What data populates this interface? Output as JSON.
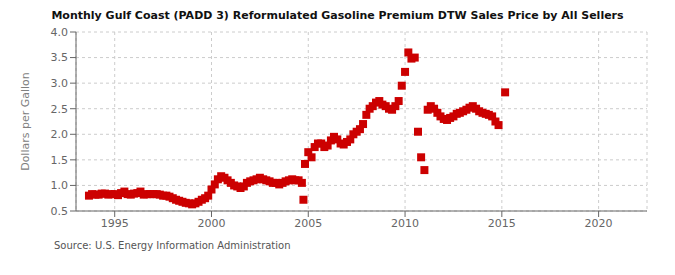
{
  "chart_data": {
    "type": "scatter",
    "title": "Monthly Gulf Coast (PADD 3) Reformulated Gasoline Premium DTW Sales Price by All Sellers",
    "ylabel": "Dollars per Gallon",
    "annotation": "Source: U.S. Energy Information Administration",
    "color": "#cc0000",
    "marker": "square",
    "grid": true,
    "xlim": [
      1993.0,
      2022.5
    ],
    "xticks": [
      1995,
      2000,
      2005,
      2010,
      2015,
      2020
    ],
    "ylim": [
      0.5,
      4.0
    ],
    "yticks": [
      0.5,
      {
        "value": 1.0,
        "label": "1.0"
      },
      1.5,
      {
        "value": 2.0,
        "label": "2.0"
      },
      2.5,
      {
        "value": 3.0,
        "label": "3.0"
      },
      3.5,
      {
        "value": 4.0,
        "label": "4.0"
      }
    ],
    "x": [
      1993.67,
      1993.83,
      1994.0,
      1994.17,
      1994.33,
      1994.5,
      1994.67,
      1994.83,
      1995.0,
      1995.17,
      1995.33,
      1995.5,
      1995.67,
      1995.83,
      1996.0,
      1996.17,
      1996.33,
      1996.5,
      1996.67,
      1996.83,
      1997.0,
      1997.17,
      1997.33,
      1997.5,
      1997.67,
      1997.83,
      1998.0,
      1998.17,
      1998.33,
      1998.5,
      1998.67,
      1998.83,
      1999.0,
      1999.17,
      1999.33,
      1999.5,
      1999.67,
      1999.83,
      2000.0,
      2000.17,
      2000.33,
      2000.5,
      2000.67,
      2000.83,
      2001.0,
      2001.17,
      2001.33,
      2001.5,
      2001.67,
      2001.83,
      2002.0,
      2002.17,
      2002.33,
      2002.5,
      2002.67,
      2002.83,
      2003.0,
      2003.17,
      2003.33,
      2003.5,
      2003.67,
      2003.83,
      2004.0,
      2004.17,
      2004.33,
      2004.5,
      2004.67,
      2004.75,
      2004.83,
      2005.0,
      2005.17,
      2005.33,
      2005.5,
      2005.67,
      2005.83,
      2006.0,
      2006.17,
      2006.33,
      2006.5,
      2006.67,
      2006.83,
      2007.0,
      2007.17,
      2007.33,
      2007.5,
      2007.67,
      2007.83,
      2008.0,
      2008.17,
      2008.33,
      2008.5,
      2008.67,
      2008.83,
      2009.0,
      2009.17,
      2009.33,
      2009.5,
      2009.67,
      2009.83,
      2010.0,
      2010.17,
      2010.33,
      2010.5,
      2010.67,
      2010.83,
      2011.0,
      2011.17,
      2011.33,
      2011.5,
      2011.67,
      2011.83,
      2012.0,
      2012.17,
      2012.33,
      2012.5,
      2012.67,
      2012.83,
      2013.0,
      2013.17,
      2013.33,
      2013.5,
      2013.67,
      2013.83,
      2014.0,
      2014.17,
      2014.33,
      2014.5,
      2014.67,
      2014.83,
      2015.17
    ],
    "values": [
      0.8,
      0.83,
      0.82,
      0.82,
      0.84,
      0.84,
      0.82,
      0.83,
      0.83,
      0.81,
      0.85,
      0.88,
      0.83,
      0.82,
      0.84,
      0.85,
      0.88,
      0.82,
      0.83,
      0.83,
      0.83,
      0.83,
      0.82,
      0.8,
      0.8,
      0.78,
      0.75,
      0.72,
      0.7,
      0.68,
      0.66,
      0.65,
      0.63,
      0.65,
      0.68,
      0.72,
      0.75,
      0.8,
      0.92,
      1.02,
      1.12,
      1.18,
      1.15,
      1.1,
      1.05,
      1.0,
      0.98,
      0.95,
      0.98,
      1.05,
      1.08,
      1.1,
      1.12,
      1.15,
      1.12,
      1.1,
      1.08,
      1.05,
      1.05,
      1.02,
      1.05,
      1.08,
      1.1,
      1.12,
      1.1,
      1.1,
      1.05,
      0.72,
      1.42,
      1.65,
      1.55,
      1.75,
      1.82,
      1.82,
      1.75,
      1.78,
      1.88,
      1.95,
      1.9,
      1.82,
      1.8,
      1.85,
      1.9,
      2.0,
      2.05,
      2.1,
      2.2,
      2.38,
      2.5,
      2.55,
      2.62,
      2.65,
      2.58,
      2.55,
      2.5,
      2.48,
      2.55,
      2.65,
      2.95,
      3.22,
      3.6,
      3.48,
      3.5,
      2.05,
      1.55,
      1.3,
      2.48,
      2.55,
      2.5,
      2.42,
      2.35,
      2.3,
      2.28,
      2.32,
      2.35,
      2.4,
      2.42,
      2.45,
      2.48,
      2.52,
      2.55,
      2.5,
      2.45,
      2.42,
      2.4,
      2.38,
      2.35,
      2.25,
      2.18,
      2.82
    ]
  }
}
